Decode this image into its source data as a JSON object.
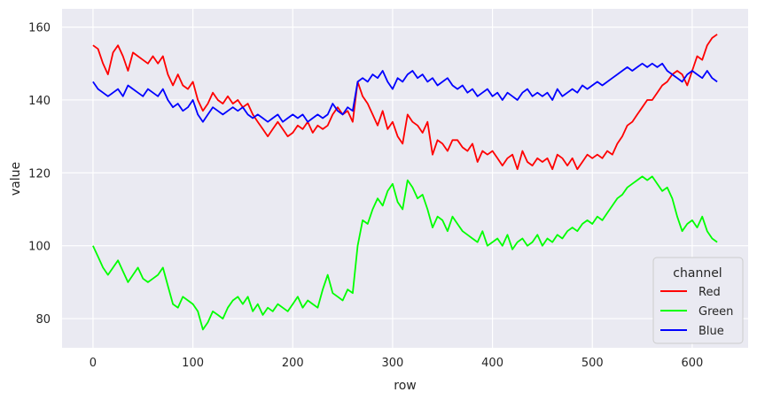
{
  "chart_data": {
    "type": "line",
    "xlabel": "row",
    "ylabel": "value",
    "xlim": [
      -31,
      656
    ],
    "ylim": [
      72,
      165
    ],
    "xticks": [
      0,
      100,
      200,
      300,
      400,
      500,
      600
    ],
    "yticks": [
      80,
      100,
      120,
      140,
      160
    ],
    "grid": true,
    "legend": {
      "title": "channel",
      "placement": "bottom-right"
    },
    "series": [
      {
        "name": "Red",
        "color": "#ff0000",
        "x": [
          0,
          5,
          10,
          15,
          20,
          25,
          30,
          35,
          40,
          45,
          50,
          55,
          60,
          65,
          70,
          75,
          80,
          85,
          90,
          95,
          100,
          105,
          110,
          115,
          120,
          125,
          130,
          135,
          140,
          145,
          150,
          155,
          160,
          165,
          170,
          175,
          180,
          185,
          190,
          195,
          200,
          205,
          210,
          215,
          220,
          225,
          230,
          235,
          240,
          245,
          250,
          255,
          260,
          265,
          270,
          275,
          280,
          285,
          290,
          295,
          300,
          305,
          310,
          315,
          320,
          325,
          330,
          335,
          340,
          345,
          350,
          355,
          360,
          365,
          370,
          375,
          380,
          385,
          390,
          395,
          400,
          405,
          410,
          415,
          420,
          425,
          430,
          435,
          440,
          445,
          450,
          455,
          460,
          465,
          470,
          475,
          480,
          485,
          490,
          495,
          500,
          505,
          510,
          515,
          520,
          525,
          530,
          535,
          540,
          545,
          550,
          555,
          560,
          565,
          570,
          575,
          580,
          585,
          590,
          595,
          600,
          605,
          610,
          615,
          620,
          625
        ],
        "values": [
          155,
          154,
          150,
          147,
          153,
          155,
          152,
          148,
          153,
          152,
          151,
          150,
          152,
          150,
          152,
          147,
          144,
          147,
          144,
          143,
          145,
          140,
          137,
          139,
          142,
          140,
          139,
          141,
          139,
          140,
          138,
          139,
          136,
          134,
          132,
          130,
          132,
          134,
          132,
          130,
          131,
          133,
          132,
          134,
          131,
          133,
          132,
          133,
          136,
          138,
          136,
          137,
          134,
          145,
          141,
          139,
          136,
          133,
          137,
          132,
          134,
          130,
          128,
          136,
          134,
          133,
          131,
          134,
          125,
          129,
          128,
          126,
          129,
          129,
          127,
          126,
          128,
          123,
          126,
          125,
          126,
          124,
          122,
          124,
          125,
          121,
          126,
          123,
          122,
          124,
          123,
          124,
          121,
          125,
          124,
          122,
          124,
          121,
          123,
          125,
          124,
          125,
          124,
          126,
          125,
          128,
          130,
          133,
          134,
          136,
          138,
          140,
          140,
          142,
          144,
          145,
          147,
          148,
          147,
          144,
          148,
          152,
          151,
          155,
          157,
          158
        ]
      },
      {
        "name": "Green",
        "color": "#00ff00",
        "x": [
          0,
          5,
          10,
          15,
          20,
          25,
          30,
          35,
          40,
          45,
          50,
          55,
          60,
          65,
          70,
          75,
          80,
          85,
          90,
          95,
          100,
          105,
          110,
          115,
          120,
          125,
          130,
          135,
          140,
          145,
          150,
          155,
          160,
          165,
          170,
          175,
          180,
          185,
          190,
          195,
          200,
          205,
          210,
          215,
          220,
          225,
          230,
          235,
          240,
          245,
          250,
          255,
          260,
          265,
          270,
          275,
          280,
          285,
          290,
          295,
          300,
          305,
          310,
          315,
          320,
          325,
          330,
          335,
          340,
          345,
          350,
          355,
          360,
          365,
          370,
          375,
          380,
          385,
          390,
          395,
          400,
          405,
          410,
          415,
          420,
          425,
          430,
          435,
          440,
          445,
          450,
          455,
          460,
          465,
          470,
          475,
          480,
          485,
          490,
          495,
          500,
          505,
          510,
          515,
          520,
          525,
          530,
          535,
          540,
          545,
          550,
          555,
          560,
          565,
          570,
          575,
          580,
          585,
          590,
          595,
          600,
          605,
          610,
          615,
          620,
          625
        ],
        "values": [
          100,
          97,
          94,
          92,
          94,
          96,
          93,
          90,
          92,
          94,
          91,
          90,
          91,
          92,
          94,
          89,
          84,
          83,
          86,
          85,
          84,
          82,
          77,
          79,
          82,
          81,
          80,
          83,
          85,
          86,
          84,
          86,
          82,
          84,
          81,
          83,
          82,
          84,
          83,
          82,
          84,
          86,
          83,
          85,
          84,
          83,
          88,
          92,
          87,
          86,
          85,
          88,
          87,
          100,
          107,
          106,
          110,
          113,
          111,
          115,
          117,
          112,
          110,
          118,
          116,
          113,
          114,
          110,
          105,
          108,
          107,
          104,
          108,
          106,
          104,
          103,
          102,
          101,
          104,
          100,
          101,
          102,
          100,
          103,
          99,
          101,
          102,
          100,
          101,
          103,
          100,
          102,
          101,
          103,
          102,
          104,
          105,
          104,
          106,
          107,
          106,
          108,
          107,
          109,
          111,
          113,
          114,
          116,
          117,
          118,
          119,
          118,
          119,
          117,
          115,
          116,
          113,
          108,
          104,
          106,
          107,
          105,
          108,
          104,
          102,
          101
        ]
      },
      {
        "name": "Blue",
        "color": "#0000ff",
        "x": [
          0,
          5,
          10,
          15,
          20,
          25,
          30,
          35,
          40,
          45,
          50,
          55,
          60,
          65,
          70,
          75,
          80,
          85,
          90,
          95,
          100,
          105,
          110,
          115,
          120,
          125,
          130,
          135,
          140,
          145,
          150,
          155,
          160,
          165,
          170,
          175,
          180,
          185,
          190,
          195,
          200,
          205,
          210,
          215,
          220,
          225,
          230,
          235,
          240,
          245,
          250,
          255,
          260,
          265,
          270,
          275,
          280,
          285,
          290,
          295,
          300,
          305,
          310,
          315,
          320,
          325,
          330,
          335,
          340,
          345,
          350,
          355,
          360,
          365,
          370,
          375,
          380,
          385,
          390,
          395,
          400,
          405,
          410,
          415,
          420,
          425,
          430,
          435,
          440,
          445,
          450,
          455,
          460,
          465,
          470,
          475,
          480,
          485,
          490,
          495,
          500,
          505,
          510,
          515,
          520,
          525,
          530,
          535,
          540,
          545,
          550,
          555,
          560,
          565,
          570,
          575,
          580,
          585,
          590,
          595,
          600,
          605,
          610,
          615,
          620,
          625
        ],
        "values": [
          145,
          143,
          142,
          141,
          142,
          143,
          141,
          144,
          143,
          142,
          141,
          143,
          142,
          141,
          143,
          140,
          138,
          139,
          137,
          138,
          140,
          136,
          134,
          136,
          138,
          137,
          136,
          137,
          138,
          137,
          138,
          136,
          135,
          136,
          135,
          134,
          135,
          136,
          134,
          135,
          136,
          135,
          136,
          134,
          135,
          136,
          135,
          136,
          139,
          137,
          136,
          138,
          137,
          145,
          146,
          145,
          147,
          146,
          148,
          145,
          143,
          146,
          145,
          147,
          148,
          146,
          147,
          145,
          146,
          144,
          145,
          146,
          144,
          143,
          144,
          142,
          143,
          141,
          142,
          143,
          141,
          142,
          140,
          142,
          141,
          140,
          142,
          143,
          141,
          142,
          141,
          142,
          140,
          143,
          141,
          142,
          143,
          142,
          144,
          143,
          144,
          145,
          144,
          145,
          146,
          147,
          148,
          149,
          148,
          149,
          150,
          149,
          150,
          149,
          150,
          148,
          147,
          146,
          145,
          147,
          148,
          147,
          146,
          148,
          146,
          145
        ]
      }
    ]
  }
}
